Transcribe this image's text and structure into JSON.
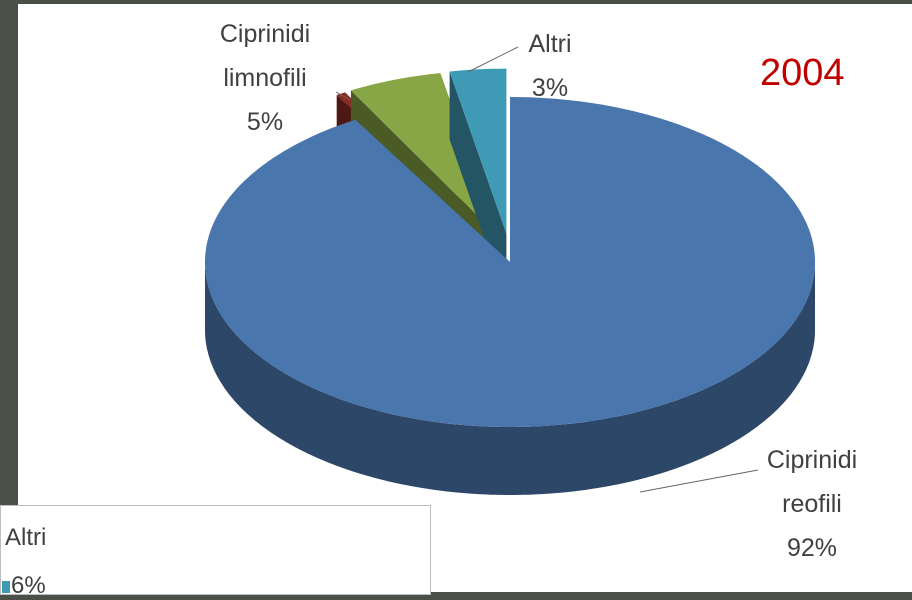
{
  "chart_data": [
    {
      "type": "pie3d",
      "title": "2004",
      "categories": [
        "Ciprinidi reofili",
        null,
        "Ciprinidi limnofili",
        "Altri"
      ],
      "values": [
        92,
        0.5,
        5,
        3
      ],
      "value_labels": [
        "92%",
        null,
        "5%",
        "3%"
      ],
      "colors": [
        "#4a76ae",
        "#8e2b25",
        "#88a645",
        "#3f9bb5"
      ]
    },
    {
      "type": "pie-fragment",
      "categories": [
        "Altri"
      ],
      "values": [
        6
      ],
      "value_labels": [
        "6%"
      ],
      "colors": [
        "#3f9bb5"
      ]
    }
  ]
}
